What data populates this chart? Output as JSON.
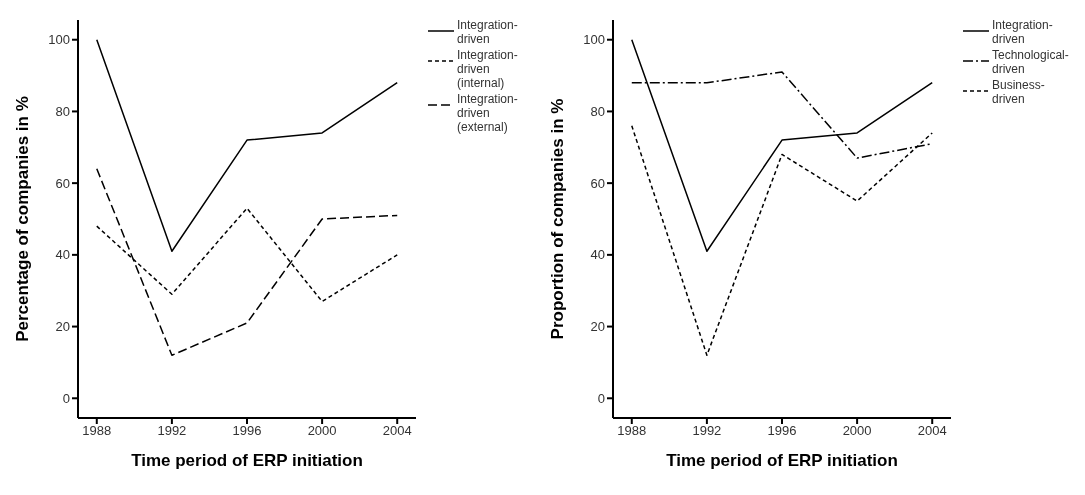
{
  "chart_data": [
    {
      "type": "line",
      "xlabel": "Time period of ERP initiation",
      "ylabel": "Percentage of companies in %",
      "x": [
        1988,
        1992,
        1996,
        2000,
        2004
      ],
      "xlim": [
        1987,
        2005
      ],
      "xticks": [
        1988,
        1992,
        1996,
        2000,
        2004
      ],
      "ylim": [
        -5.5,
        105.5
      ],
      "yticks": [
        0,
        20,
        40,
        60,
        80,
        100
      ],
      "legend": "right",
      "series": [
        {
          "name": "Integration-driven",
          "color": "#000000",
          "line_style": "solid",
          "values": [
            100,
            41,
            72,
            74,
            88
          ]
        },
        {
          "name": "Integration-driven (internal)",
          "color": "#000000",
          "line_style": "dotted",
          "values": [
            48,
            29,
            53,
            27,
            40
          ]
        },
        {
          "name": "Integration-driven (external)",
          "color": "#000000",
          "line_style": "dashed",
          "values": [
            64,
            12,
            21,
            50,
            51
          ]
        }
      ]
    },
    {
      "type": "line",
      "xlabel": "Time period of ERP initiation",
      "ylabel": "Proportion of companies in %",
      "x": [
        1988,
        1992,
        1996,
        2000,
        2004
      ],
      "xlim": [
        1987,
        2005
      ],
      "xticks": [
        1988,
        1992,
        1996,
        2000,
        2004
      ],
      "ylim": [
        -5.5,
        105.5
      ],
      "yticks": [
        0,
        20,
        40,
        60,
        80,
        100
      ],
      "legend": "right",
      "series": [
        {
          "name": "Integration-driven",
          "color": "#000000",
          "line_style": "solid",
          "values": [
            100,
            41,
            72,
            74,
            88
          ]
        },
        {
          "name": "Technological-driven",
          "color": "#000000",
          "line_style": "dashdot",
          "values": [
            88,
            88,
            91,
            67,
            71
          ]
        },
        {
          "name": "Business-driven",
          "color": "#000000",
          "line_style": "dotted",
          "values": [
            76,
            12,
            68,
            55,
            74
          ]
        }
      ]
    }
  ]
}
